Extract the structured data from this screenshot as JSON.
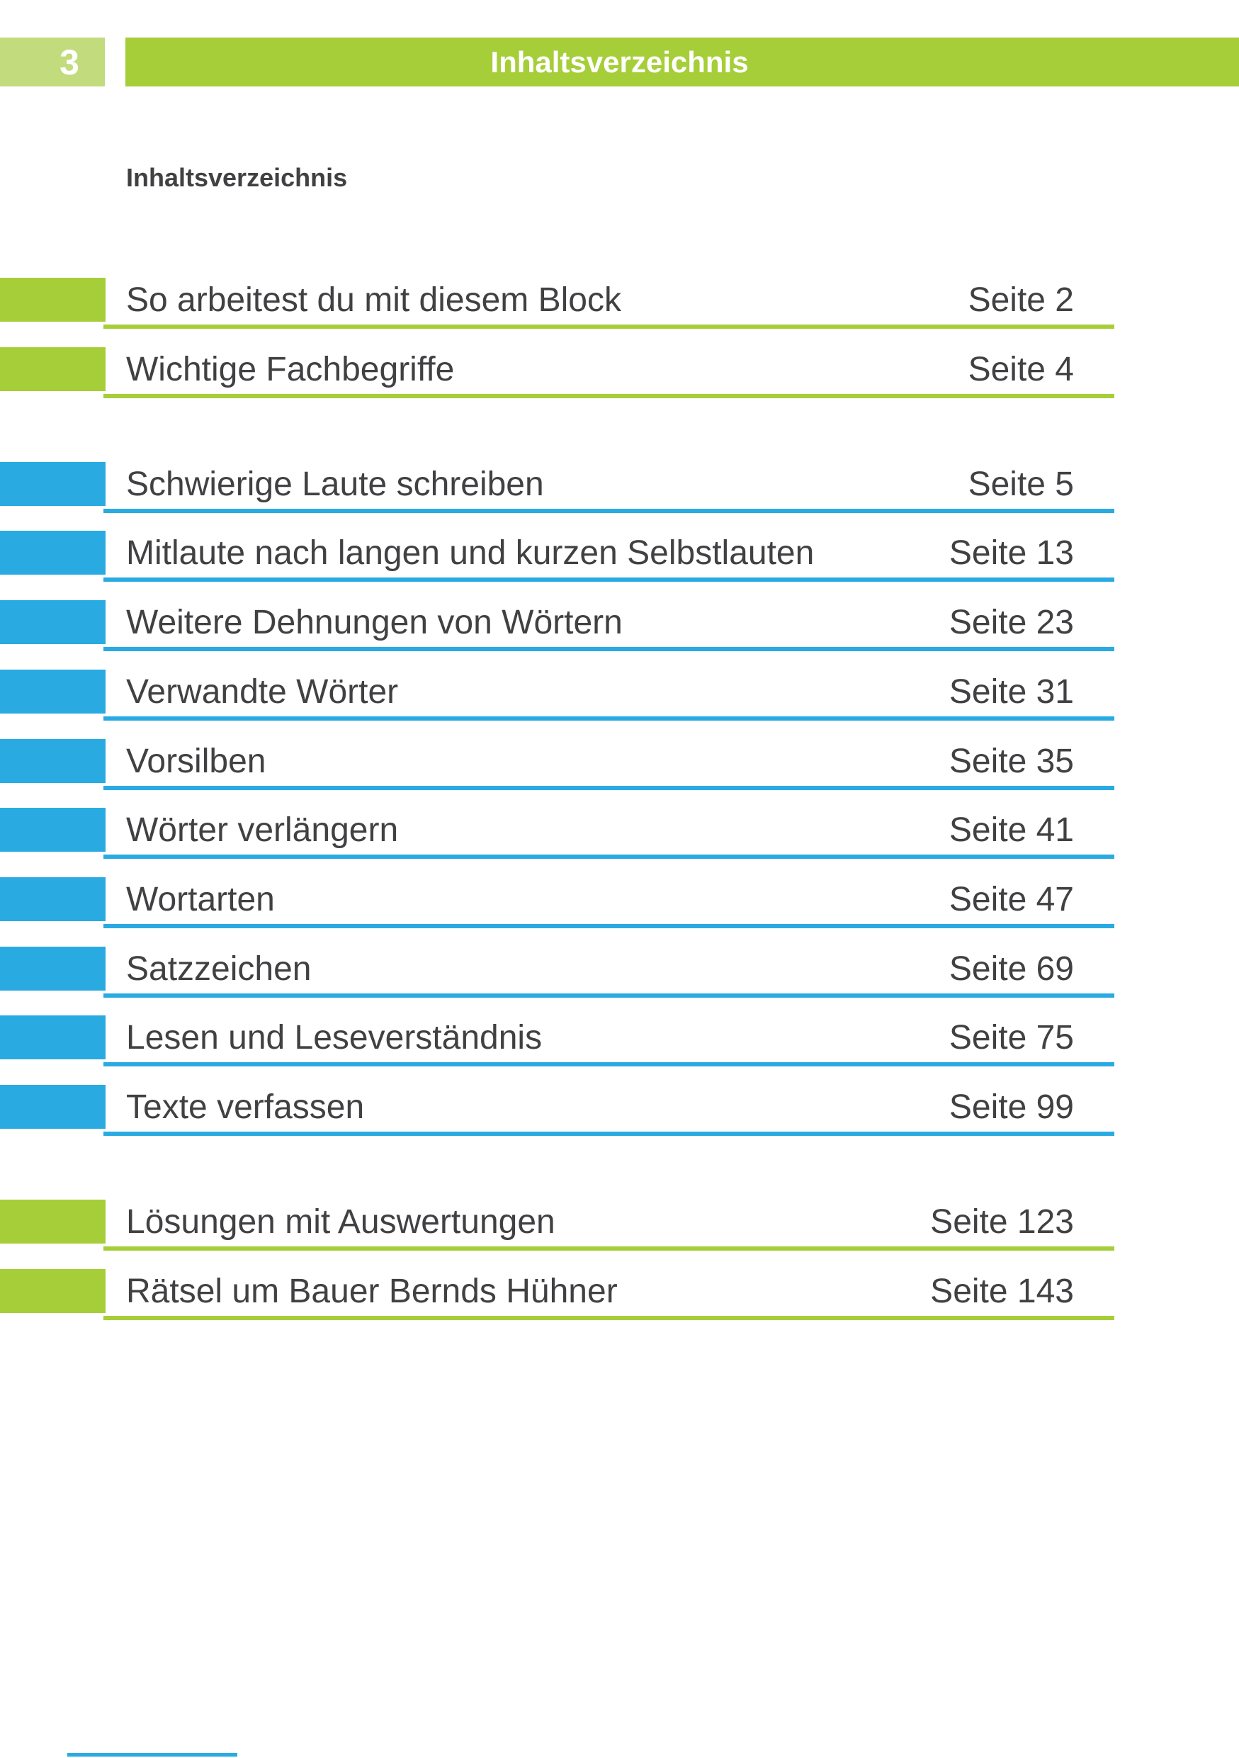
{
  "header": {
    "page_number": "3",
    "title": "Inhaltsverzeichnis"
  },
  "main": {
    "heading": "Inhaltsverzeichnis"
  },
  "colors": {
    "green": "#a6ce39",
    "light_green": "#c2db7d",
    "blue": "#29abe2",
    "text_dark": "#414042",
    "white": "#ffffff"
  },
  "toc": {
    "sections": [
      {
        "color": "green",
        "items": [
          {
            "title": "So arbeitest du mit diesem Block",
            "page": "Seite 2"
          },
          {
            "title": "Wichtige Fachbegriffe",
            "page": "Seite 4"
          }
        ]
      },
      {
        "color": "blue",
        "items": [
          {
            "title": "Schwierige Laute schreiben",
            "page": "Seite 5"
          },
          {
            "title": "Mitlaute nach langen und kurzen Selbstlauten",
            "page": "Seite 13"
          },
          {
            "title": "Weitere Dehnungen von Wörtern",
            "page": "Seite 23"
          },
          {
            "title": "Verwandte Wörter",
            "page": "Seite 31"
          },
          {
            "title": "Vorsilben",
            "page": "Seite 35"
          },
          {
            "title": "Wörter verlängern",
            "page": "Seite 41"
          },
          {
            "title": "Wortarten",
            "page": "Seite 47"
          },
          {
            "title": "Satzzeichen",
            "page": "Seite 69"
          },
          {
            "title": "Lesen und Leseverständnis",
            "page": "Seite 75"
          },
          {
            "title": "Texte verfassen",
            "page": "Seite 99"
          }
        ]
      },
      {
        "color": "green",
        "items": [
          {
            "title": "Lösungen mit Auswertungen",
            "page": "Seite 123"
          },
          {
            "title": "Rätsel um Bauer Bernds Hühner",
            "page": "Seite 143"
          }
        ]
      }
    ]
  }
}
